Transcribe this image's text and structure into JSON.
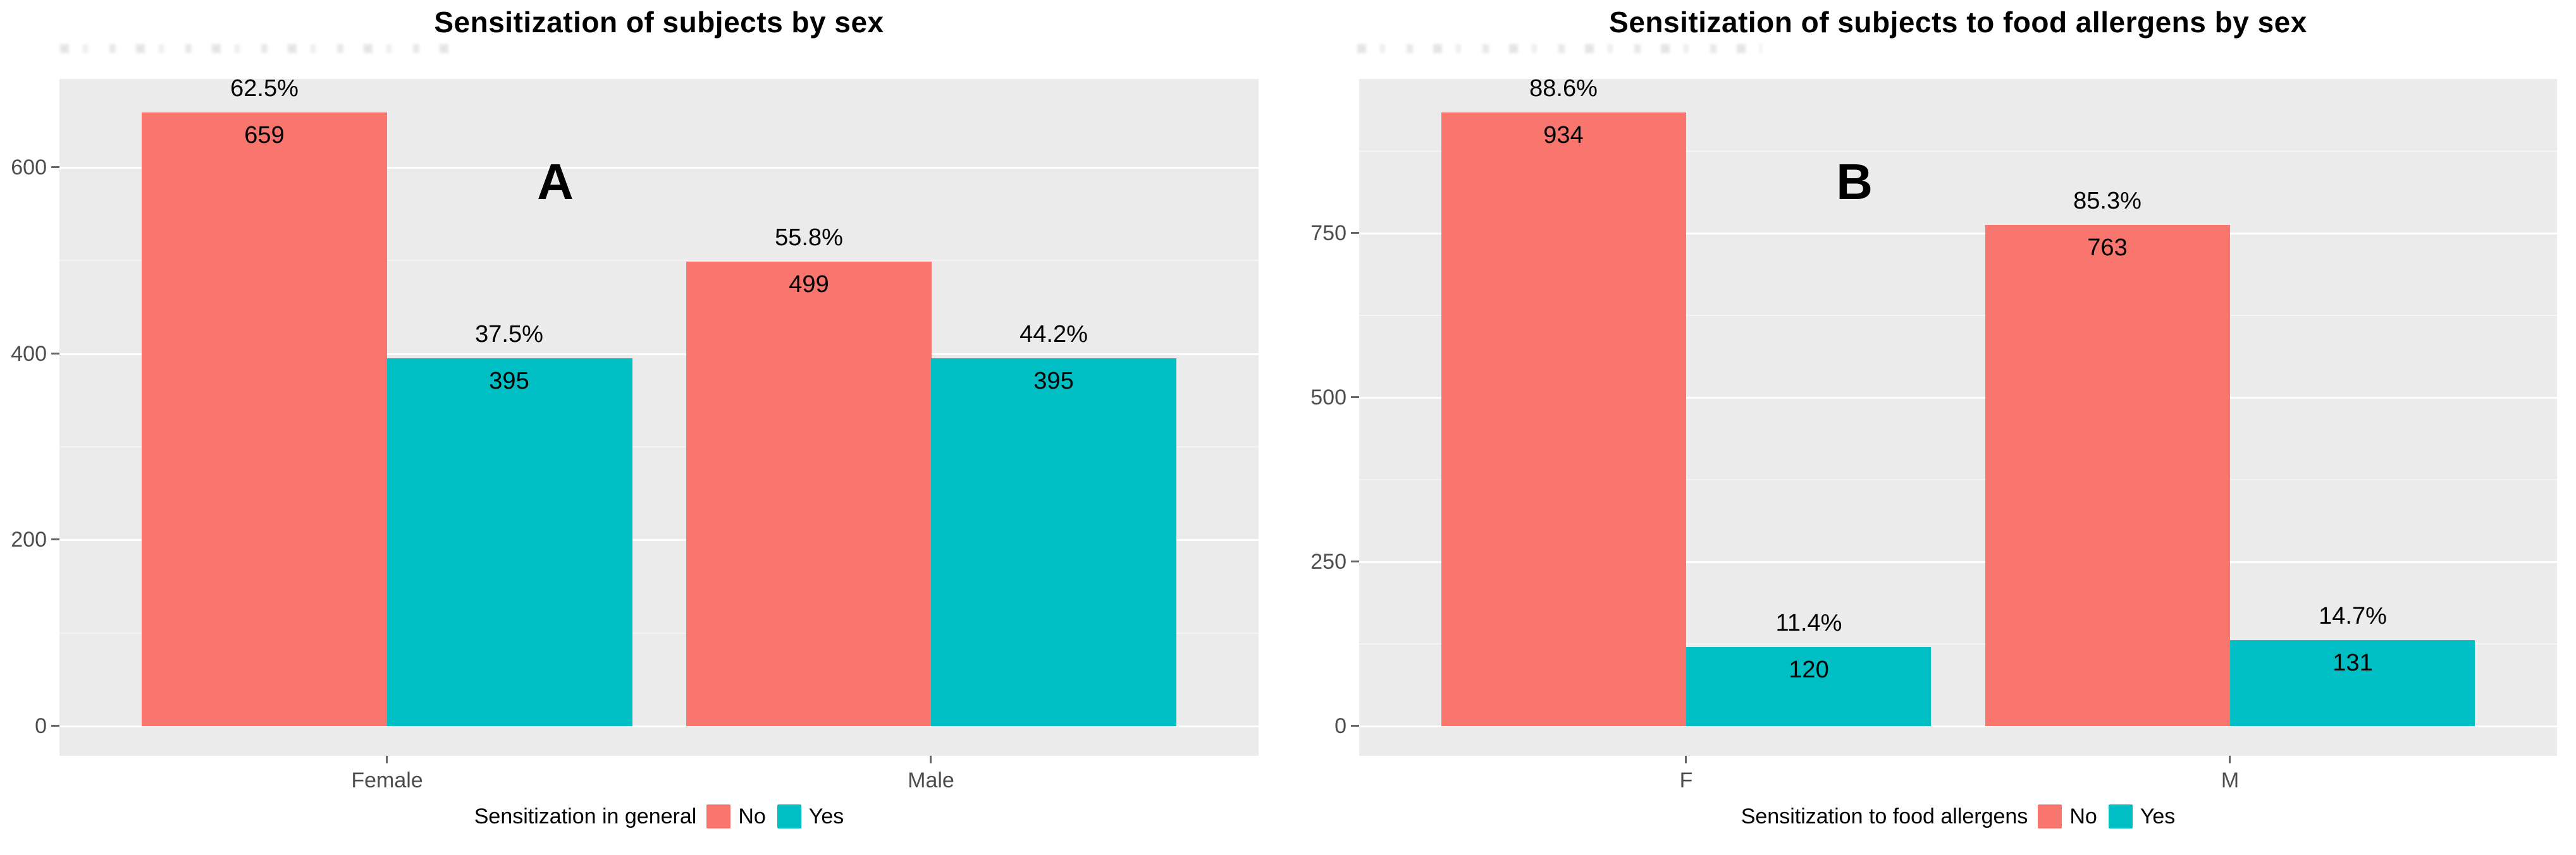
{
  "style": {
    "background": "#FFFFFF",
    "panel_background": "#EBEBEB",
    "grid_major_color": "#FFFFFF",
    "grid_minor_color": "#F4F4F4",
    "axis_text_color": "#4D4D4D",
    "tick_mark_color": "#666666",
    "value_label_color": "#000000",
    "no_color": "#F8766D",
    "yes_color": "#00BFC4"
  },
  "chart_data": [
    {
      "type": "bar",
      "panel_label": "A",
      "title": "Sensitization of subjects by sex",
      "xlabel": "",
      "ylabel": "",
      "categories": [
        "Female",
        "Male"
      ],
      "series": [
        {
          "name": "No",
          "color": "#F8766D",
          "values": [
            659,
            499
          ],
          "percent_labels": [
            "62.5%",
            "55.8%"
          ]
        },
        {
          "name": "Yes",
          "color": "#00BFC4",
          "values": [
            395,
            395
          ],
          "percent_labels": [
            "37.5%",
            "44.2%"
          ]
        }
      ],
      "ylim": [
        0,
        700
      ],
      "yticks": [
        0,
        200,
        400,
        600
      ],
      "yticks_minor": [
        100,
        300,
        500
      ],
      "grid": true,
      "legend_position": "bottom",
      "legend_title": "Sensitization in general"
    },
    {
      "type": "bar",
      "panel_label": "B",
      "title": "Sensitization of subjects to food allergens by sex",
      "xlabel": "",
      "ylabel": "",
      "categories": [
        "F",
        "M"
      ],
      "series": [
        {
          "name": "No",
          "color": "#F8766D",
          "values": [
            934,
            763
          ],
          "percent_labels": [
            "88.6%",
            "85.3%"
          ]
        },
        {
          "name": "Yes",
          "color": "#00BFC4",
          "values": [
            120,
            131
          ],
          "percent_labels": [
            "11.4%",
            "14.7%"
          ]
        }
      ],
      "ylim": [
        0,
        980
      ],
      "yticks": [
        0,
        250,
        500,
        750
      ],
      "yticks_minor": [
        125,
        375,
        625,
        875
      ],
      "grid": true,
      "legend_position": "bottom",
      "legend_title": "Sensitization to food allergens"
    }
  ]
}
